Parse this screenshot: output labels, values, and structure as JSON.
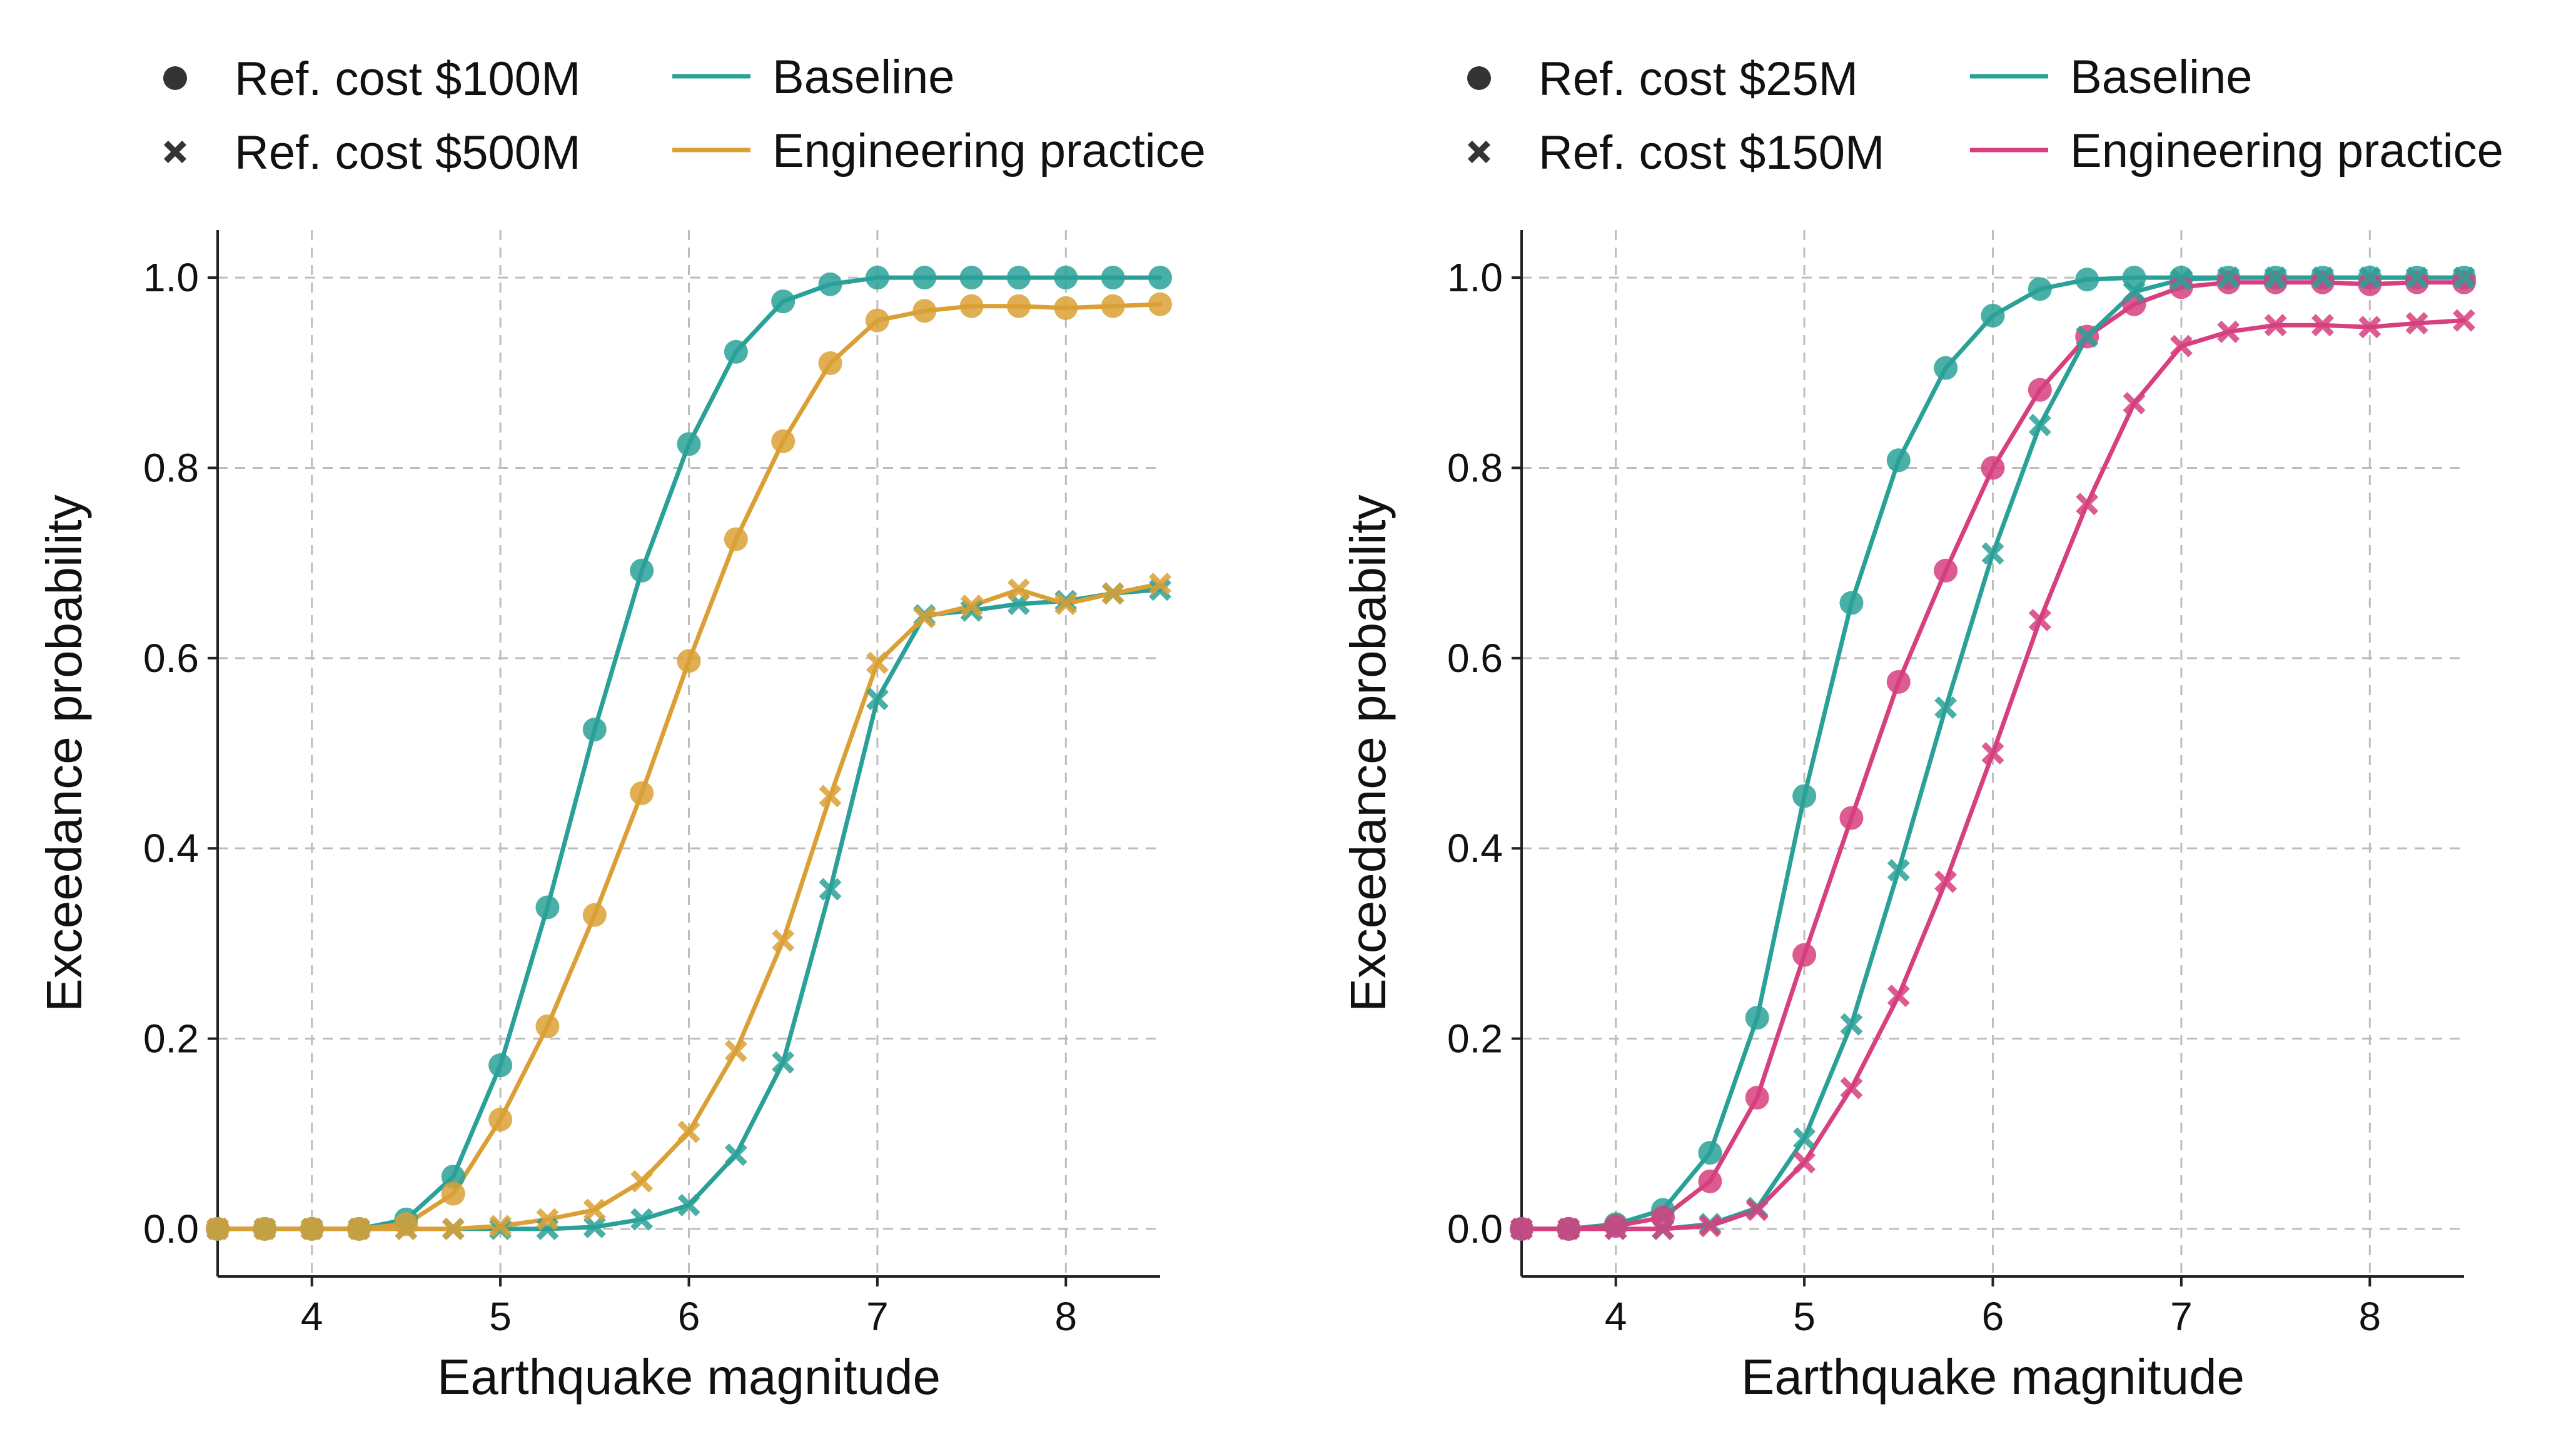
{
  "colors": {
    "baseline": "#2aa198",
    "practice_left": "#dba035",
    "practice_right": "#d6407f",
    "legend_marker": "#111111"
  },
  "chart_data": [
    {
      "type": "line",
      "title": "",
      "xlabel": "Earthquake magnitude",
      "ylabel": "Exceedance probability",
      "xlim": [
        3.5,
        8.5
      ],
      "ylim": [
        -0.05,
        1.05
      ],
      "xticks": [
        4,
        5,
        6,
        7,
        8
      ],
      "xtick_labels": [
        "4",
        "5",
        "6",
        "7",
        "8"
      ],
      "yticks": [
        0.0,
        0.2,
        0.4,
        0.6,
        0.8,
        1.0
      ],
      "ytick_labels": [
        "0.0",
        "0.2",
        "0.4",
        "0.6",
        "0.8",
        "1.0"
      ],
      "grid": true,
      "legend": {
        "placement": "top",
        "markers": [
          {
            "label": "Ref. cost $100M",
            "marker": "circle"
          },
          {
            "label": "Ref. cost $500M",
            "marker": "x"
          }
        ],
        "lines": [
          {
            "label": "Baseline",
            "color_key": "baseline"
          },
          {
            "label": "Engineering practice",
            "color_key": "practice_left"
          }
        ]
      },
      "x": [
        3.5,
        3.75,
        4.0,
        4.25,
        4.5,
        4.75,
        5.0,
        5.25,
        5.5,
        5.75,
        6.0,
        6.25,
        6.5,
        6.75,
        7.0,
        7.25,
        7.5,
        7.75,
        8.0,
        8.25,
        8.5
      ],
      "series": [
        {
          "name": "Baseline, Ref. cost $100M",
          "color_key": "baseline",
          "marker": "circle",
          "values": [
            0.0,
            0.0,
            0.0,
            0.0,
            0.01,
            0.055,
            0.172,
            0.338,
            0.525,
            0.692,
            0.825,
            0.922,
            0.975,
            0.993,
            1.0,
            1.0,
            1.0,
            1.0,
            1.0,
            1.0,
            1.0
          ]
        },
        {
          "name": "Engineering practice, Ref. cost $100M",
          "color_key": "practice_left",
          "marker": "circle",
          "values": [
            0.0,
            0.0,
            0.0,
            0.0,
            0.005,
            0.037,
            0.115,
            0.213,
            0.33,
            0.458,
            0.597,
            0.725,
            0.828,
            0.91,
            0.955,
            0.965,
            0.97,
            0.97,
            0.968,
            0.97,
            0.972
          ]
        },
        {
          "name": "Baseline, Ref. cost $500M",
          "color_key": "baseline",
          "marker": "x",
          "values": [
            0.0,
            0.0,
            0.0,
            0.0,
            0.0,
            0.0,
            0.0,
            0.0,
            0.002,
            0.01,
            0.025,
            0.078,
            0.175,
            0.357,
            0.557,
            0.645,
            0.65,
            0.657,
            0.66,
            0.668,
            0.672
          ]
        },
        {
          "name": "Engineering practice, Ref. cost $500M",
          "color_key": "practice_left",
          "marker": "x",
          "values": [
            0.0,
            0.0,
            0.0,
            0.0,
            0.0,
            0.0,
            0.003,
            0.01,
            0.02,
            0.05,
            0.102,
            0.187,
            0.303,
            0.455,
            0.595,
            0.643,
            0.655,
            0.672,
            0.657,
            0.668,
            0.678
          ]
        }
      ]
    },
    {
      "type": "line",
      "title": "",
      "xlabel": "Earthquake magnitude",
      "ylabel": "Exceedance probability",
      "xlim": [
        3.5,
        8.5
      ],
      "ylim": [
        -0.05,
        1.05
      ],
      "xticks": [
        4,
        5,
        6,
        7,
        8
      ],
      "xtick_labels": [
        "4",
        "5",
        "6",
        "7",
        "8"
      ],
      "yticks": [
        0.0,
        0.2,
        0.4,
        0.6,
        0.8,
        1.0
      ],
      "ytick_labels": [
        "0.0",
        "0.2",
        "0.4",
        "0.6",
        "0.8",
        "1.0"
      ],
      "grid": true,
      "legend": {
        "placement": "top",
        "markers": [
          {
            "label": "Ref. cost $25M",
            "marker": "circle"
          },
          {
            "label": "Ref. cost $150M",
            "marker": "x"
          }
        ],
        "lines": [
          {
            "label": "Baseline",
            "color_key": "baseline"
          },
          {
            "label": "Engineering practice",
            "color_key": "practice_right"
          }
        ]
      },
      "x": [
        3.5,
        3.75,
        4.0,
        4.25,
        4.5,
        4.75,
        5.0,
        5.25,
        5.5,
        5.75,
        6.0,
        6.25,
        6.5,
        6.75,
        7.0,
        7.25,
        7.5,
        7.75,
        8.0,
        8.25,
        8.5
      ],
      "series": [
        {
          "name": "Baseline, Ref. cost $25M",
          "color_key": "baseline",
          "marker": "circle",
          "values": [
            0.0,
            0.0,
            0.005,
            0.02,
            0.08,
            0.222,
            0.455,
            0.658,
            0.808,
            0.905,
            0.96,
            0.988,
            0.998,
            1.0,
            1.0,
            1.0,
            1.0,
            1.0,
            1.0,
            1.0,
            1.0
          ]
        },
        {
          "name": "Engineering practice, Ref. cost $25M",
          "color_key": "practice_right",
          "marker": "circle",
          "values": [
            0.0,
            0.0,
            0.003,
            0.012,
            0.05,
            0.138,
            0.288,
            0.432,
            0.575,
            0.692,
            0.8,
            0.882,
            0.938,
            0.972,
            0.99,
            0.995,
            0.995,
            0.995,
            0.993,
            0.995,
            0.995
          ]
        },
        {
          "name": "Baseline, Ref. cost $150M",
          "color_key": "baseline",
          "marker": "x",
          "values": [
            0.0,
            0.0,
            0.0,
            0.0,
            0.005,
            0.022,
            0.095,
            0.215,
            0.377,
            0.548,
            0.71,
            0.845,
            0.938,
            0.985,
            0.998,
            1.0,
            1.0,
            1.0,
            1.0,
            1.0,
            1.0
          ]
        },
        {
          "name": "Engineering practice, Ref. cost $150M",
          "color_key": "practice_right",
          "marker": "x",
          "values": [
            0.0,
            0.0,
            0.0,
            0.0,
            0.003,
            0.02,
            0.07,
            0.148,
            0.245,
            0.365,
            0.5,
            0.64,
            0.762,
            0.868,
            0.928,
            0.943,
            0.95,
            0.95,
            0.948,
            0.952,
            0.955
          ]
        }
      ]
    }
  ]
}
